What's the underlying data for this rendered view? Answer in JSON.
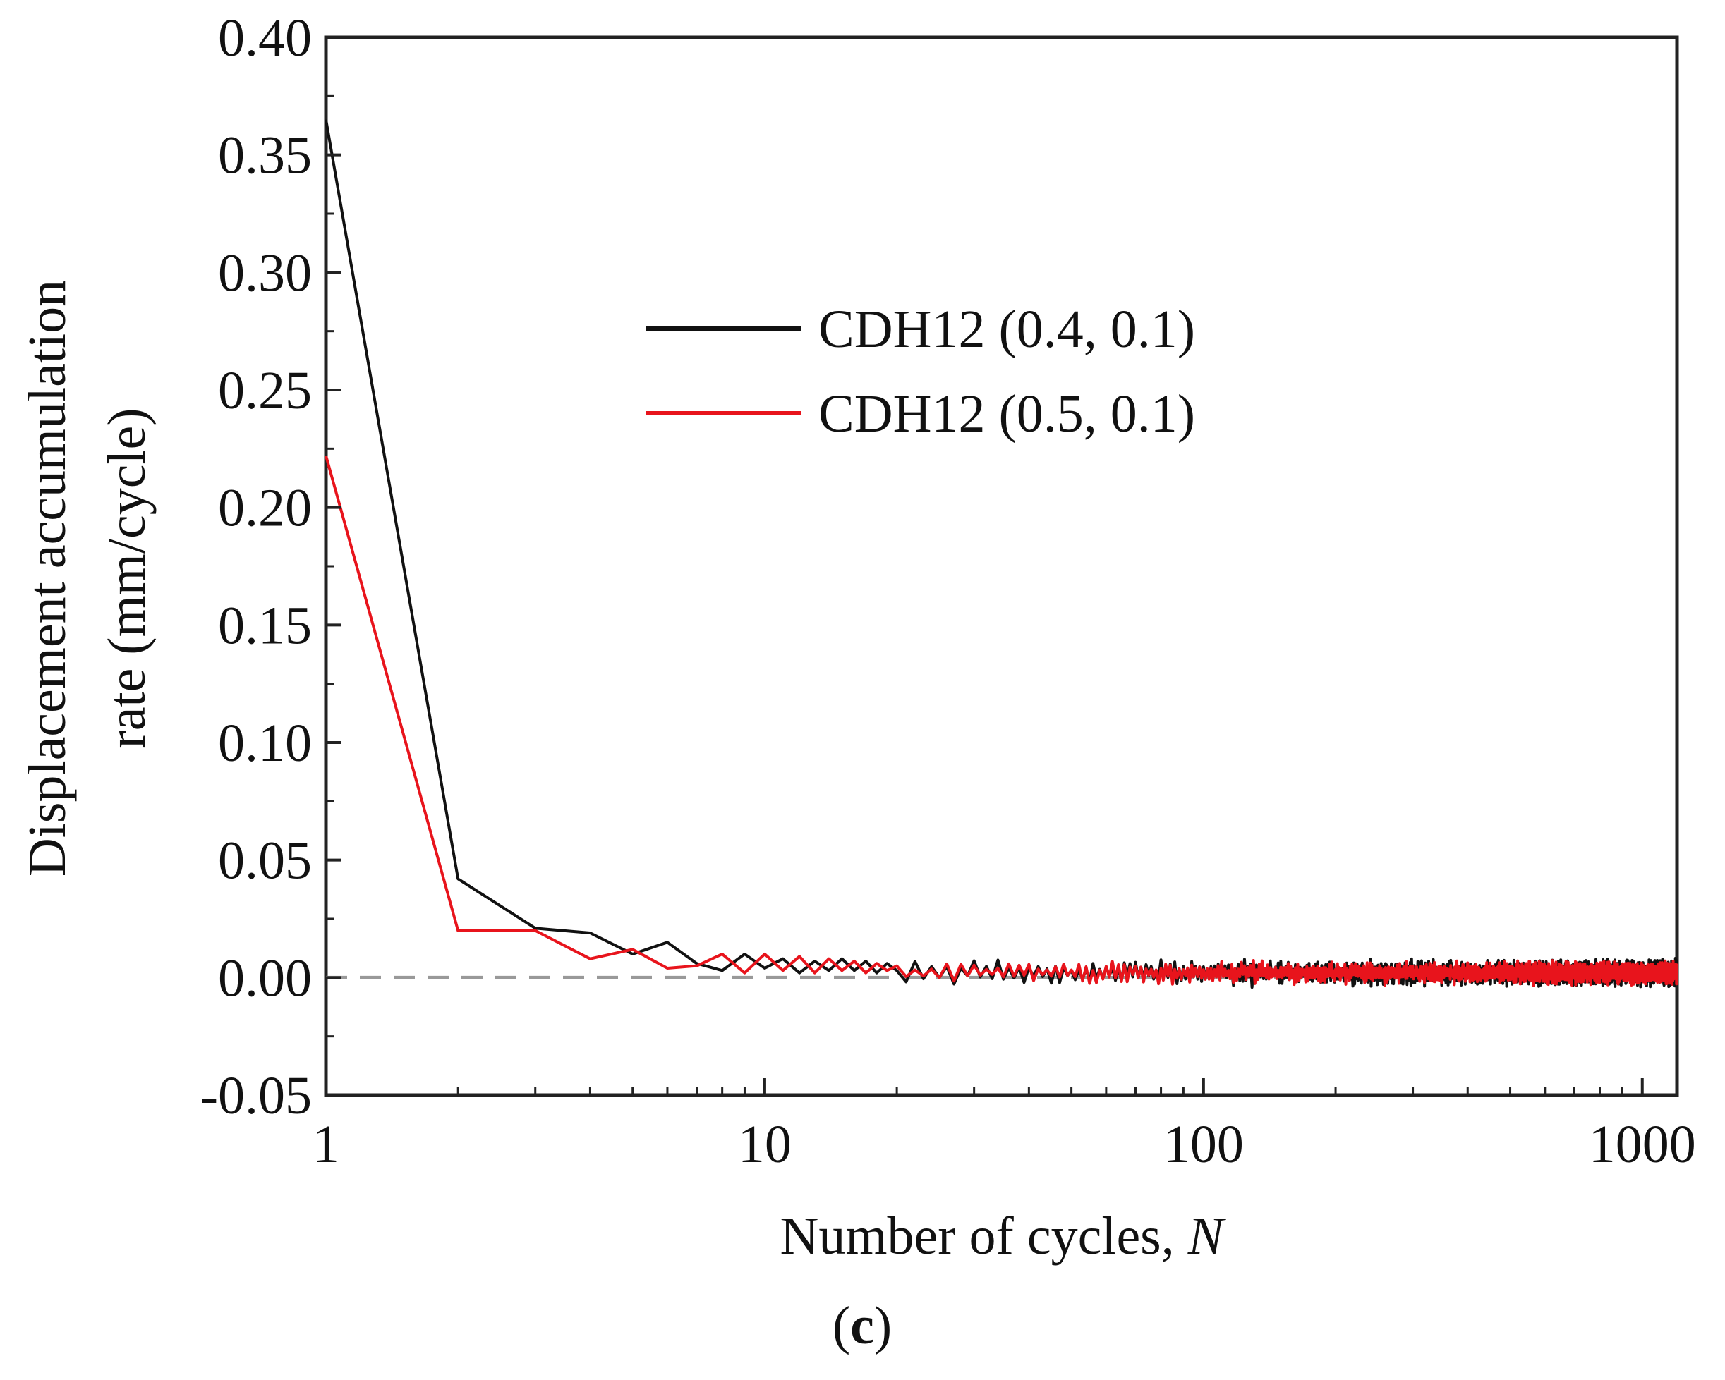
{
  "chart_data": {
    "type": "line",
    "title": "",
    "xlabel": "Number of cycles, ",
    "xlabel_italic": "N",
    "ylabel_line1": "Displacement accumulation",
    "ylabel_line2": "rate (mm/cycle)",
    "x_scale": "log",
    "xlim": [
      1,
      1200
    ],
    "ylim": [
      -0.05,
      0.4
    ],
    "x_ticks": [
      1,
      10,
      100,
      1000
    ],
    "x_tick_labels": [
      "1",
      "10",
      "100",
      "1000"
    ],
    "y_ticks": [
      -0.05,
      0.0,
      0.05,
      0.1,
      0.15,
      0.2,
      0.25,
      0.3,
      0.35,
      0.4
    ],
    "y_tick_labels": [
      "-0.05",
      "0.00",
      "0.05",
      "0.10",
      "0.15",
      "0.20",
      "0.25",
      "0.30",
      "0.35",
      "0.40"
    ],
    "reference_line": {
      "y": 0.0,
      "style": "dashed",
      "color": "#999999"
    },
    "legend_position": "upper-center",
    "series": [
      {
        "name": "CDH12 (0.4, 0.1)",
        "color": "#111111",
        "points": [
          [
            1,
            0.365
          ],
          [
            2,
            0.042
          ],
          [
            3,
            0.021
          ],
          [
            4,
            0.019
          ],
          [
            5,
            0.01
          ],
          [
            6,
            0.015
          ],
          [
            7,
            0.006
          ],
          [
            8,
            0.003
          ],
          [
            9,
            0.01
          ],
          [
            10,
            0.004
          ],
          [
            11,
            0.008
          ],
          [
            12,
            0.002
          ],
          [
            13,
            0.007
          ],
          [
            14,
            0.003
          ],
          [
            15,
            0.008
          ],
          [
            16,
            0.003
          ],
          [
            17,
            0.007
          ],
          [
            18,
            0.002
          ],
          [
            19,
            0.006
          ],
          [
            20,
            0.003
          ]
        ],
        "noise": {
          "from": 20,
          "to": 1200,
          "center": 0.002,
          "amplitude": 0.008
        }
      },
      {
        "name": "CDH12 (0.5, 0.1)",
        "color": "#e8141c",
        "points": [
          [
            1,
            0.222
          ],
          [
            2,
            0.02
          ],
          [
            3,
            0.02
          ],
          [
            4,
            0.008
          ],
          [
            5,
            0.012
          ],
          [
            6,
            0.004
          ],
          [
            7,
            0.005
          ],
          [
            8,
            0.01
          ],
          [
            9,
            0.002
          ],
          [
            10,
            0.01
          ],
          [
            11,
            0.003
          ],
          [
            12,
            0.009
          ],
          [
            13,
            0.002
          ],
          [
            14,
            0.008
          ],
          [
            15,
            0.003
          ],
          [
            16,
            0.007
          ],
          [
            17,
            0.002
          ],
          [
            18,
            0.006
          ],
          [
            19,
            0.003
          ],
          [
            20,
            0.005
          ]
        ],
        "noise": {
          "from": 20,
          "to": 1200,
          "center": 0.002,
          "amplitude": 0.007
        }
      }
    ]
  },
  "caption": {
    "open": "(",
    "letter": "c",
    "close": ")"
  }
}
